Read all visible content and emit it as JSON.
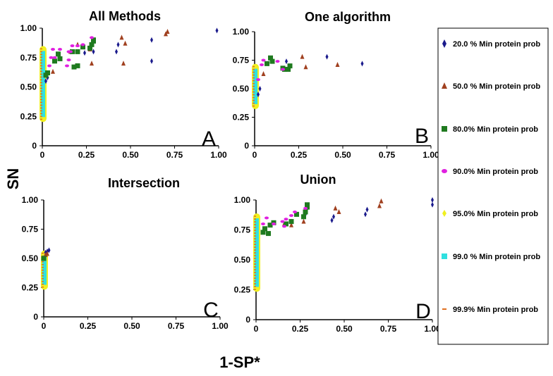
{
  "chart_data": {
    "type": "scatter",
    "ylabel": "SN",
    "xlabel": "1-SP*",
    "legend_position": "right",
    "legend": [
      {
        "label": "20.0 % Min protein prob",
        "marker": "diamond",
        "color": "#1a1a8c"
      },
      {
        "label": "50.0 % Min protein prob",
        "marker": "triangle",
        "color": "#a0401f"
      },
      {
        "label": "80.0% Min protein prob",
        "marker": "square",
        "color": "#1f7a1f"
      },
      {
        "label": "90.0% Min protein prob",
        "marker": "circle",
        "color": "#e020e0"
      },
      {
        "label": "95.0% Min protein prob",
        "marker": "diamond-fill",
        "color": "#f0f020"
      },
      {
        "label": "99.0 % Min protein prob",
        "marker": "square-fill",
        "color": "#30e0e0"
      },
      {
        "label": "99.9% Min protein prob",
        "marker": "dash",
        "color": "#e07020"
      }
    ],
    "panels": [
      {
        "title": "All Methods",
        "letter": "A",
        "xlim": [
          0,
          1
        ],
        "ylim": [
          0,
          1
        ],
        "xticks": [
          "0",
          "0.25",
          "0.50",
          "0.75",
          "1.00"
        ],
        "yticks": [
          "0",
          "0.25",
          "0.50",
          "0.75",
          "1.00"
        ],
        "near_zero": {
          "x": 0.0,
          "y_range": [
            0.22,
            0.83
          ]
        },
        "points": [
          [
            0.02,
            0.55,
            "20"
          ],
          [
            0.03,
            0.58,
            "20"
          ],
          [
            0.24,
            0.79,
            "20"
          ],
          [
            0.29,
            0.8,
            "20"
          ],
          [
            0.42,
            0.8,
            "20"
          ],
          [
            0.43,
            0.86,
            "20"
          ],
          [
            0.62,
            0.72,
            "20"
          ],
          [
            0.62,
            0.9,
            "20"
          ],
          [
            0.99,
            0.98,
            "20"
          ],
          [
            0.06,
            0.63,
            "50"
          ],
          [
            0.16,
            0.8,
            "50"
          ],
          [
            0.2,
            0.86,
            "50"
          ],
          [
            0.27,
            0.82,
            "50"
          ],
          [
            0.28,
            0.7,
            "50"
          ],
          [
            0.45,
            0.92,
            "50"
          ],
          [
            0.46,
            0.7,
            "50"
          ],
          [
            0.47,
            0.87,
            "50"
          ],
          [
            0.7,
            0.95,
            "50"
          ],
          [
            0.71,
            0.97,
            "50"
          ],
          [
            0.02,
            0.6,
            "80"
          ],
          [
            0.03,
            0.62,
            "80"
          ],
          [
            0.07,
            0.72,
            "80"
          ],
          [
            0.09,
            0.78,
            "80"
          ],
          [
            0.1,
            0.74,
            "80"
          ],
          [
            0.17,
            0.8,
            "80"
          ],
          [
            0.18,
            0.67,
            "80"
          ],
          [
            0.2,
            0.8,
            "80"
          ],
          [
            0.2,
            0.68,
            "80"
          ],
          [
            0.23,
            0.84,
            "80"
          ],
          [
            0.27,
            0.83,
            "80"
          ],
          [
            0.28,
            0.86,
            "80"
          ],
          [
            0.29,
            0.89,
            "80"
          ],
          [
            0.29,
            0.9,
            "80"
          ],
          [
            0.04,
            0.68,
            "90"
          ],
          [
            0.05,
            0.75,
            "90"
          ],
          [
            0.06,
            0.82,
            "90"
          ],
          [
            0.07,
            0.75,
            "90"
          ],
          [
            0.1,
            0.82,
            "90"
          ],
          [
            0.14,
            0.68,
            "90"
          ],
          [
            0.15,
            0.73,
            "90"
          ],
          [
            0.15,
            0.8,
            "90"
          ],
          [
            0.16,
            0.8,
            "90"
          ],
          [
            0.17,
            0.85,
            "90"
          ],
          [
            0.2,
            0.85,
            "90"
          ],
          [
            0.23,
            0.86,
            "90"
          ],
          [
            0.28,
            0.92,
            "90"
          ]
        ]
      },
      {
        "title": "One algorithm",
        "letter": "B",
        "xlim": [
          0,
          1
        ],
        "ylim": [
          0,
          1
        ],
        "xticks": [
          "0",
          "0.25",
          "0.50",
          "0.75",
          "1.00"
        ],
        "yticks": [
          "0",
          "0.25",
          "0.50",
          "0.75",
          "1.00"
        ],
        "near_zero": {
          "x": 0.0,
          "y_range": [
            0.34,
            0.7
          ]
        },
        "points": [
          [
            0.02,
            0.45,
            "20"
          ],
          [
            0.03,
            0.5,
            "20"
          ],
          [
            0.18,
            0.74,
            "20"
          ],
          [
            0.41,
            0.78,
            "20"
          ],
          [
            0.61,
            0.72,
            "20"
          ],
          [
            0.05,
            0.63,
            "50"
          ],
          [
            0.27,
            0.78,
            "50"
          ],
          [
            0.29,
            0.69,
            "50"
          ],
          [
            0.47,
            0.71,
            "50"
          ],
          [
            0.07,
            0.72,
            "80"
          ],
          [
            0.09,
            0.77,
            "80"
          ],
          [
            0.1,
            0.74,
            "80"
          ],
          [
            0.16,
            0.68,
            "80"
          ],
          [
            0.17,
            0.67,
            "80"
          ],
          [
            0.19,
            0.67,
            "80"
          ],
          [
            0.2,
            0.7,
            "80"
          ],
          [
            0.02,
            0.58,
            "90"
          ],
          [
            0.04,
            0.71,
            "90"
          ],
          [
            0.05,
            0.75,
            "90"
          ],
          [
            0.13,
            0.74,
            "90"
          ],
          [
            0.16,
            0.67,
            "90"
          ]
        ]
      },
      {
        "title": "Intersection",
        "letter": "C",
        "xlim": [
          0,
          1
        ],
        "ylim": [
          0,
          1
        ],
        "xticks": [
          "0",
          "0.25",
          "0.50",
          "0.75",
          "1.00"
        ],
        "yticks": [
          "0",
          "0.25",
          "0.50",
          "0.75",
          "1.00"
        ],
        "near_zero": {
          "x": 0.0,
          "y_range": [
            0.25,
            0.55
          ]
        },
        "points": [
          [
            0.01,
            0.55,
            "20"
          ],
          [
            0.02,
            0.56,
            "20"
          ],
          [
            0.03,
            0.57,
            "20"
          ],
          [
            0.01,
            0.53,
            "50"
          ],
          [
            0.02,
            0.54,
            "50"
          ],
          [
            0.0,
            0.5,
            "80"
          ]
        ]
      },
      {
        "title": "Union",
        "letter": "D",
        "xlim": [
          0,
          1
        ],
        "ylim": [
          0,
          1
        ],
        "xticks": [
          "0",
          "0.25",
          "0.50",
          "0.75",
          "1.00"
        ],
        "yticks": [
          "0",
          "0.25",
          "0.50",
          "0.75",
          "1.00"
        ],
        "near_zero": {
          "x": 0.0,
          "y_range": [
            0.25,
            0.87
          ]
        },
        "points": [
          [
            0.2,
            0.82,
            "20"
          ],
          [
            0.28,
            0.88,
            "20"
          ],
          [
            0.43,
            0.83,
            "20"
          ],
          [
            0.44,
            0.86,
            "20"
          ],
          [
            0.62,
            0.88,
            "20"
          ],
          [
            0.63,
            0.92,
            "20"
          ],
          [
            1.0,
            0.96,
            "20"
          ],
          [
            1.0,
            1.0,
            "20"
          ],
          [
            0.16,
            0.8,
            "50"
          ],
          [
            0.2,
            0.79,
            "50"
          ],
          [
            0.27,
            0.82,
            "50"
          ],
          [
            0.45,
            0.93,
            "50"
          ],
          [
            0.47,
            0.9,
            "50"
          ],
          [
            0.7,
            0.95,
            "50"
          ],
          [
            0.71,
            0.99,
            "50"
          ],
          [
            0.04,
            0.73,
            "80"
          ],
          [
            0.05,
            0.76,
            "80"
          ],
          [
            0.07,
            0.72,
            "80"
          ],
          [
            0.08,
            0.79,
            "80"
          ],
          [
            0.1,
            0.81,
            "80"
          ],
          [
            0.17,
            0.8,
            "80"
          ],
          [
            0.2,
            0.82,
            "80"
          ],
          [
            0.23,
            0.88,
            "80"
          ],
          [
            0.27,
            0.86,
            "80"
          ],
          [
            0.28,
            0.9,
            "80"
          ],
          [
            0.29,
            0.94,
            "80"
          ],
          [
            0.29,
            0.96,
            "80"
          ],
          [
            0.04,
            0.8,
            "90"
          ],
          [
            0.06,
            0.85,
            "90"
          ],
          [
            0.1,
            0.8,
            "90"
          ],
          [
            0.15,
            0.82,
            "90"
          ],
          [
            0.16,
            0.78,
            "90"
          ],
          [
            0.17,
            0.84,
            "90"
          ],
          [
            0.2,
            0.87,
            "90"
          ],
          [
            0.22,
            0.9,
            "90"
          ],
          [
            0.28,
            0.93,
            "90"
          ]
        ]
      }
    ]
  }
}
